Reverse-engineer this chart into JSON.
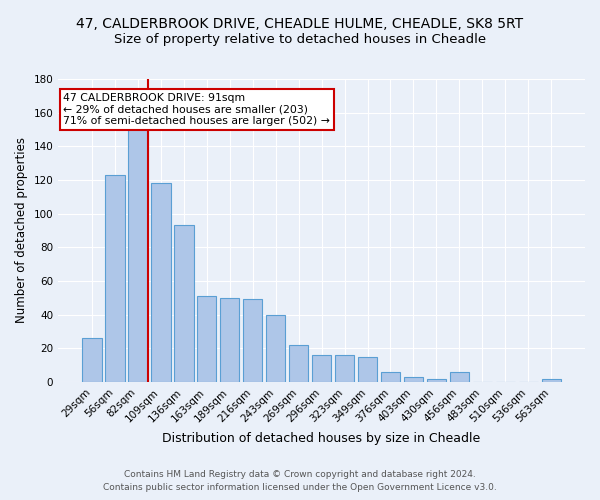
{
  "title1": "47, CALDERBROOK DRIVE, CHEADLE HULME, CHEADLE, SK8 5RT",
  "title2": "Size of property relative to detached houses in Cheadle",
  "xlabel": "Distribution of detached houses by size in Cheadle",
  "ylabel": "Number of detached properties",
  "categories": [
    "29sqm",
    "56sqm",
    "82sqm",
    "109sqm",
    "136sqm",
    "163sqm",
    "189sqm",
    "216sqm",
    "243sqm",
    "269sqm",
    "296sqm",
    "323sqm",
    "349sqm",
    "376sqm",
    "403sqm",
    "430sqm",
    "456sqm",
    "483sqm",
    "510sqm",
    "536sqm",
    "563sqm"
  ],
  "values": [
    26,
    123,
    151,
    118,
    93,
    51,
    50,
    49,
    40,
    22,
    16,
    16,
    15,
    6,
    3,
    2,
    6,
    0,
    0,
    0,
    2
  ],
  "bar_color": "#aec6e8",
  "bar_edge_color": "#5a9fd4",
  "red_line_color": "#cc0000",
  "annotation_text": "47 CALDERBROOK DRIVE: 91sqm\n← 29% of detached houses are smaller (203)\n71% of semi-detached houses are larger (502) →",
  "annotation_box_color": "white",
  "annotation_box_edge_color": "#cc0000",
  "ylim": [
    0,
    180
  ],
  "yticks": [
    0,
    20,
    40,
    60,
    80,
    100,
    120,
    140,
    160,
    180
  ],
  "footer1": "Contains HM Land Registry data © Crown copyright and database right 2024.",
  "footer2": "Contains public sector information licensed under the Open Government Licence v3.0.",
  "bg_color": "#eaf0f9",
  "grid_color": "white",
  "title1_fontsize": 10,
  "title2_fontsize": 9.5,
  "annotation_fontsize": 7.8,
  "xlabel_fontsize": 9,
  "ylabel_fontsize": 8.5,
  "tick_fontsize": 7.5,
  "footer_fontsize": 6.5
}
